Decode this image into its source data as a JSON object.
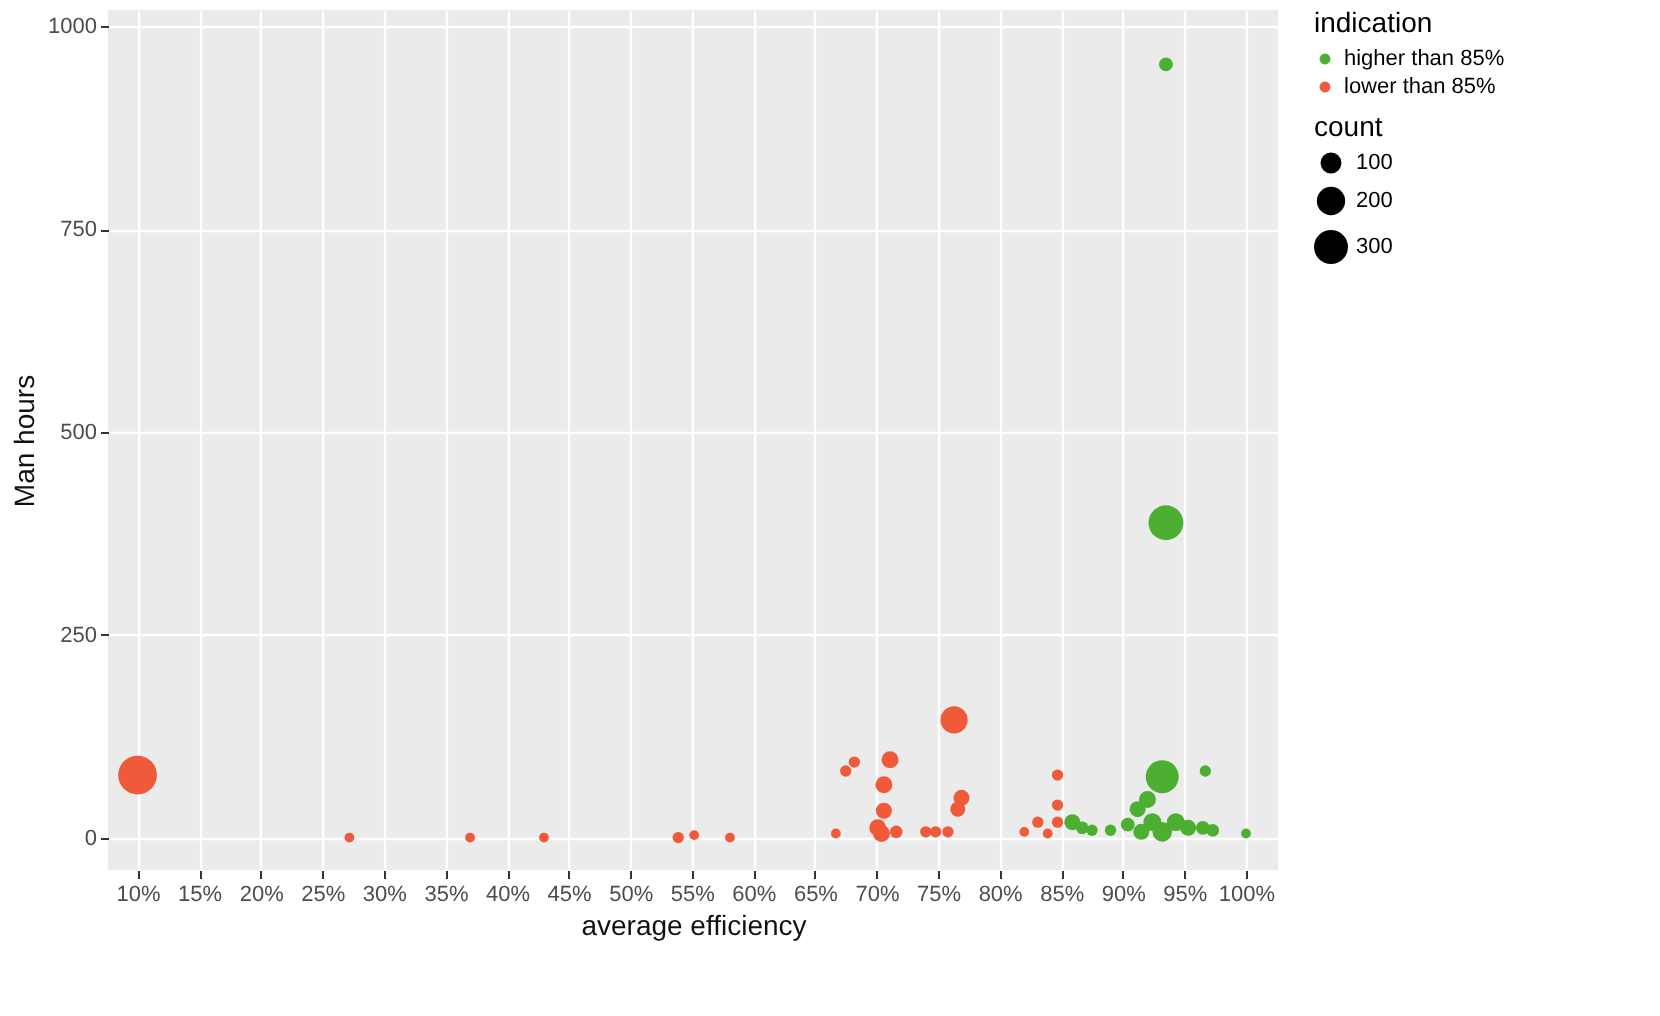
{
  "chart_data": {
    "type": "bubble",
    "xlabel": "average efficiency",
    "ylabel": "Man hours",
    "legend_title": "indication",
    "annotations": [
      "count"
    ],
    "xlim": [
      7.6,
      102.6
    ],
    "ylim": [
      -40,
      1020
    ],
    "xticks": [
      {
        "value": 10,
        "label": "10%"
      },
      {
        "value": 15,
        "label": "15%"
      },
      {
        "value": 20,
        "label": "20%"
      },
      {
        "value": 25,
        "label": "25%"
      },
      {
        "value": 30,
        "label": "30%"
      },
      {
        "value": 35,
        "label": "35%"
      },
      {
        "value": 40,
        "label": "40%"
      },
      {
        "value": 45,
        "label": "45%"
      },
      {
        "value": 50,
        "label": "50%"
      },
      {
        "value": 55,
        "label": "55%"
      },
      {
        "value": 60,
        "label": "60%"
      },
      {
        "value": 65,
        "label": "65%"
      },
      {
        "value": 70,
        "label": "70%"
      },
      {
        "value": 75,
        "label": "75%"
      },
      {
        "value": 80,
        "label": "80%"
      },
      {
        "value": 85,
        "label": "85%"
      },
      {
        "value": 90,
        "label": "90%"
      },
      {
        "value": 95,
        "label": "95%"
      },
      {
        "value": 100,
        "label": "100%"
      }
    ],
    "yticks": [
      0,
      250,
      500,
      750,
      1000
    ],
    "grid": true,
    "legend": "right",
    "size_legend": [
      100,
      200,
      300
    ],
    "marker": "circle",
    "series": [
      {
        "name": "higher than 85%",
        "color": "#4caf32",
        "x": [
          93.5,
          93.5,
          93.2,
          96.7,
          100,
          85.9,
          86.7,
          87.5,
          89,
          90.4,
          91.2,
          92,
          92.4,
          94.3,
          95.3,
          96.5,
          97.3,
          91.5,
          93.2
        ],
        "values": [
          953,
          388,
          75,
          82,
          5,
          19,
          12,
          9,
          9,
          16,
          35,
          47,
          19,
          19,
          12,
          12,
          9,
          7,
          7
        ],
        "sizes": [
          60,
          380,
          340,
          40,
          30,
          80,
          50,
          40,
          40,
          60,
          80,
          90,
          100,
          100,
          80,
          60,
          50,
          80,
          120
        ]
      },
      {
        "name": "lower than 85%",
        "color": "#ef5a3a",
        "x": [
          10,
          27.2,
          37,
          43,
          53.9,
          55.2,
          58.1,
          66.7,
          67.5,
          68.2,
          71.1,
          70.6,
          70.6,
          70.1,
          70.4,
          71.6,
          74,
          74.8,
          75.8,
          76.3,
          76.9,
          76.6,
          82,
          83.1,
          84.7,
          84.7,
          83.9,
          84.7
        ],
        "values": [
          77,
          0,
          0,
          0,
          0,
          3,
          0,
          5,
          82,
          93,
          96,
          65,
          33,
          12,
          5,
          7,
          7,
          7,
          7,
          145,
          49,
          35,
          7,
          19,
          77,
          40,
          5,
          19
        ],
        "sizes": [
          470,
          30,
          30,
          30,
          40,
          30,
          30,
          30,
          40,
          40,
          90,
          90,
          80,
          90,
          90,
          50,
          40,
          40,
          40,
          230,
          80,
          70,
          30,
          40,
          40,
          40,
          30,
          40
        ]
      }
    ]
  }
}
